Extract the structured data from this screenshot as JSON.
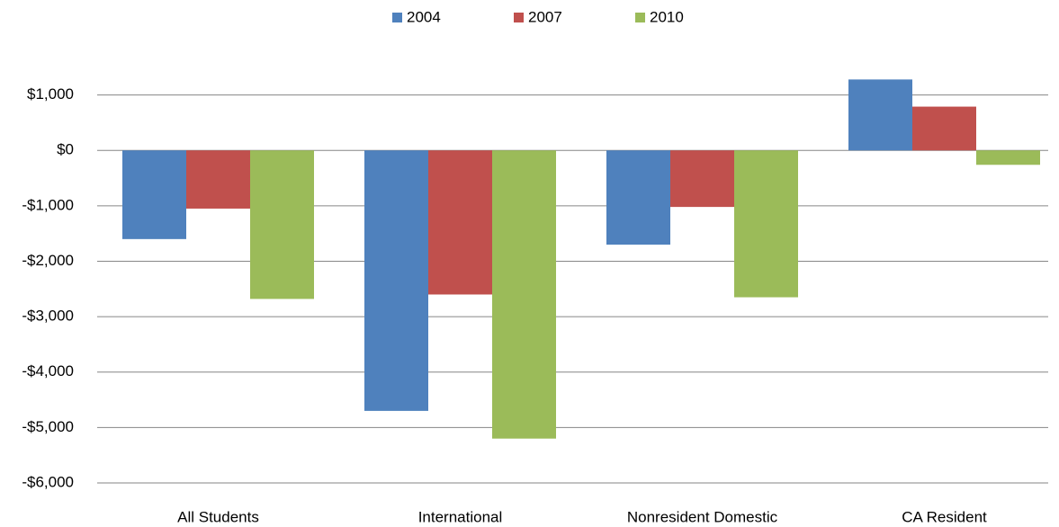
{
  "chart_data": {
    "type": "bar",
    "categories": [
      "All Students",
      "International",
      "Nonresident Domestic",
      "CA Resident"
    ],
    "series": [
      {
        "name": "2004",
        "color": "#4f81bd",
        "values": [
          -1600,
          -4700,
          -1700,
          1280
        ]
      },
      {
        "name": "2007",
        "color": "#c0504d",
        "values": [
          -1050,
          -2600,
          -1020,
          790
        ]
      },
      {
        "name": "2010",
        "color": "#9bbb59",
        "values": [
          -2680,
          -5200,
          -2650,
          -260
        ]
      }
    ],
    "ylim": [
      -6000,
      2000
    ],
    "yticks": [
      {
        "value": -6000,
        "label": "-$6,000"
      },
      {
        "value": -5000,
        "label": "-$5,000"
      },
      {
        "value": -4000,
        "label": "-$4,000"
      },
      {
        "value": -3000,
        "label": "-$3,000"
      },
      {
        "value": -2000,
        "label": "-$2,000"
      },
      {
        "value": -1000,
        "label": "-$1,000"
      },
      {
        "value": 0,
        "label": "$0"
      },
      {
        "value": 1000,
        "label": "$1,000"
      }
    ],
    "grid": true,
    "legend": "top"
  }
}
